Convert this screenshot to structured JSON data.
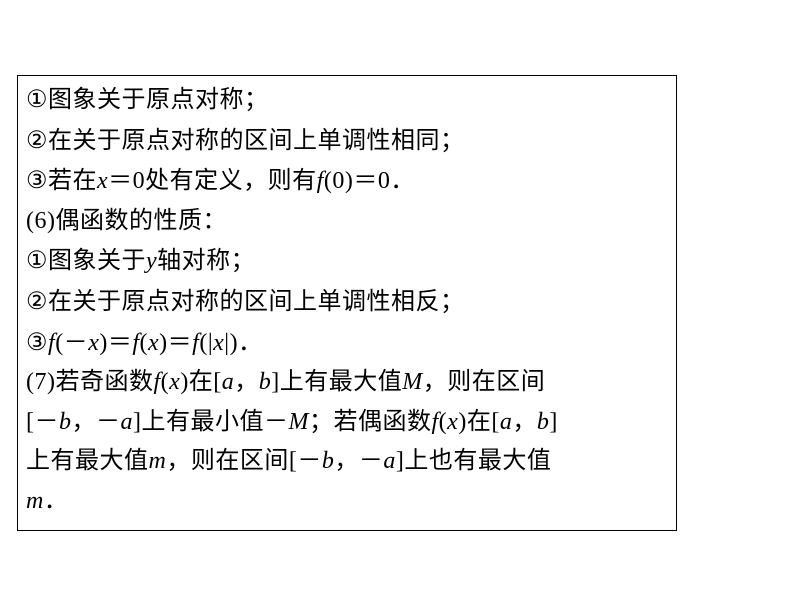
{
  "document": {
    "font_size": 24,
    "text_color": "#000000",
    "background_color": "#ffffff",
    "border_color": "#000000",
    "lines": {
      "l1_marker": "①",
      "l1_text": "图象关于原点对称；",
      "l2_marker": "②",
      "l2_text": "在关于原点对称的区间上单调性相同；",
      "l3_marker": "③",
      "l3_prefix": "若在",
      "l3_var1": "x",
      "l3_mid": "＝0处有定义，则有",
      "l3_var2": "f",
      "l3_suffix": "(0)＝0．",
      "l4_text": "(6)偶函数的性质：",
      "l5_marker": "①",
      "l5_prefix": "图象关于",
      "l5_var": "y",
      "l5_suffix": "轴对称；",
      "l6_marker": "②",
      "l6_text": "在关于原点对称的区间上单调性相反；",
      "l7_marker": "③",
      "l7_f1": "f",
      "l7_p1": "(－",
      "l7_x1": "x",
      "l7_p2": ")＝",
      "l7_f2": "f",
      "l7_p3": "(",
      "l7_x2": "x",
      "l7_p4": ")＝",
      "l7_f3": "f",
      "l7_p5": "(|",
      "l7_x3": "x",
      "l7_p6": "|)．",
      "l8_prefix": "(7)若奇函数",
      "l8_f1": "f",
      "l8_p1": "(",
      "l8_x1": "x",
      "l8_p2": ")在[",
      "l8_a1": "a",
      "l8_c1": "，",
      "l8_b1": "b",
      "l8_p3": "]上有最大值",
      "l8_M1": "M",
      "l8_p4": "，则在区间",
      "l9_p1": "[－",
      "l9_b1": "b",
      "l9_c1": "，－",
      "l9_a1": "a",
      "l9_p2": "]上有最小值－",
      "l9_M1": "M",
      "l9_p3": "；若偶函数",
      "l9_f1": "f",
      "l9_p4": "(",
      "l9_x1": "x",
      "l9_p5": ")在[",
      "l9_a2": "a",
      "l9_c2": "，",
      "l9_b2": "b",
      "l9_p6": "]",
      "l10_p1": "上有最大值",
      "l10_m1": "m",
      "l10_p2": "，则在区间[－",
      "l10_b1": "b",
      "l10_c1": "，－",
      "l10_a1": "a",
      "l10_p3": "]上也有最大值",
      "l11_m1": "m",
      "l11_p1": "．"
    }
  }
}
